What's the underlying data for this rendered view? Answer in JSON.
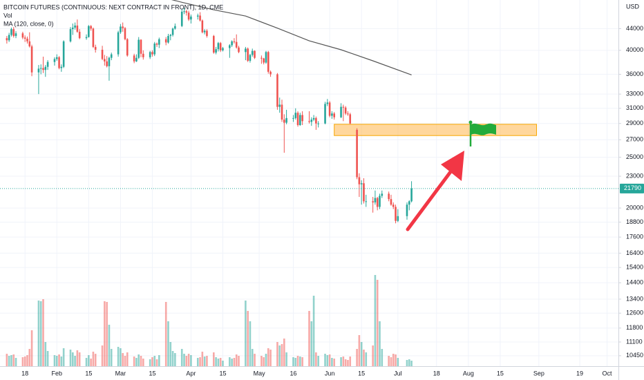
{
  "chart_data": {
    "type": "candlestick",
    "title": "BITCOIN FUTURES (CONTINUOUS: NEXT CONTRACT IN FRONT), 1D, CME",
    "y_axis_label": "USD",
    "log": true,
    "grid": true,
    "up_color": "#26a69a",
    "down_color": "#ef5350",
    "xlim": [
      "01-07",
      "10-06"
    ],
    "ylim": [
      9980,
      49900
    ],
    "yticks": [
      44000,
      40000,
      36000,
      33000,
      31000,
      29000,
      27000,
      25000,
      23000,
      20000,
      18800,
      17600,
      16400,
      15400,
      14400,
      13400,
      12600,
      11800,
      11100,
      10450
    ],
    "xticks": [
      {
        "value": "01-18",
        "label": "18"
      },
      {
        "value": "02-01",
        "label": "Feb"
      },
      {
        "value": "02-15",
        "label": "15"
      },
      {
        "value": "03-01",
        "label": "Mar"
      },
      {
        "value": "03-15",
        "label": "15"
      },
      {
        "value": "04-01",
        "label": "Apr"
      },
      {
        "value": "04-15",
        "label": "15"
      },
      {
        "value": "05-01",
        "label": "May"
      },
      {
        "value": "05-16",
        "label": "16"
      },
      {
        "value": "06-01",
        "label": "Jun"
      },
      {
        "value": "06-15",
        "label": "15"
      },
      {
        "value": "07-01",
        "label": "Jul"
      },
      {
        "value": "07-18",
        "label": "18"
      },
      {
        "value": "08-01",
        "label": "Aug"
      },
      {
        "value": "08-15",
        "label": "15"
      },
      {
        "value": "09-01",
        "label": "Sep"
      },
      {
        "value": "09-19",
        "label": "19"
      },
      {
        "value": "10-01",
        "label": "Oct"
      }
    ],
    "x": [
      "01-10",
      "01-11",
      "01-12",
      "01-13",
      "01-14",
      "01-17",
      "01-18",
      "01-19",
      "01-20",
      "01-21",
      "01-24",
      "01-25",
      "01-26",
      "01-27",
      "01-28",
      "01-31",
      "02-01",
      "02-02",
      "02-03",
      "02-04",
      "02-07",
      "02-08",
      "02-09",
      "02-10",
      "02-11",
      "02-14",
      "02-15",
      "02-16",
      "02-17",
      "02-18",
      "02-21",
      "02-22",
      "02-23",
      "02-24",
      "02-25",
      "02-28",
      "03-01",
      "03-02",
      "03-03",
      "03-04",
      "03-07",
      "03-08",
      "03-09",
      "03-10",
      "03-11",
      "03-14",
      "03-15",
      "03-16",
      "03-17",
      "03-18",
      "03-21",
      "03-22",
      "03-23",
      "03-24",
      "03-25",
      "03-28",
      "03-29",
      "03-30",
      "03-31",
      "04-01",
      "04-04",
      "04-05",
      "04-06",
      "04-07",
      "04-08",
      "04-11",
      "04-12",
      "04-13",
      "04-14",
      "04-15",
      "04-18",
      "04-19",
      "04-20",
      "04-21",
      "04-22",
      "04-25",
      "04-26",
      "04-27",
      "04-28",
      "04-29",
      "05-02",
      "05-03",
      "05-04",
      "05-05",
      "05-06",
      "05-09",
      "05-10",
      "05-11",
      "05-12",
      "05-13",
      "05-16",
      "05-17",
      "05-18",
      "05-19",
      "05-20",
      "05-23",
      "05-24",
      "05-25",
      "05-26",
      "05-27",
      "05-30",
      "05-31",
      "06-01",
      "06-02",
      "06-03",
      "06-06",
      "06-07",
      "06-08",
      "06-09",
      "06-10",
      "06-13",
      "06-14",
      "06-15",
      "06-16",
      "06-17",
      "06-20",
      "06-21",
      "06-22",
      "06-23",
      "06-24",
      "06-27",
      "06-28",
      "06-29",
      "06-30",
      "07-01",
      "07-05",
      "07-06",
      "07-07"
    ],
    "open": [
      42200,
      41800,
      42800,
      43900,
      42600,
      43100,
      42300,
      42100,
      41600,
      40700,
      36300,
      36900,
      37000,
      36700,
      37200,
      38000,
      38500,
      38800,
      37000,
      37200,
      41600,
      43900,
      44200,
      44600,
      43400,
      42200,
      42400,
      44500,
      44000,
      40600,
      40100,
      38500,
      38100,
      37300,
      38700,
      39300,
      43300,
      44400,
      44100,
      42000,
      39100,
      38100,
      38700,
      41900,
      39400,
      38800,
      39700,
      39300,
      41200,
      41000,
      42000,
      41400,
      42600,
      42800,
      44000,
      44500,
      47400,
      47500,
      47200,
      45800,
      46400,
      46600,
      45600,
      43300,
      43600,
      42600,
      39600,
      40200,
      41300,
      40000,
      40400,
      40900,
      41600,
      41500,
      40500,
      39700,
      40300,
      38200,
      39200,
      39900,
      38700,
      38600,
      37900,
      39700,
      36400,
      36000,
      31200,
      31500,
      29500,
      29100,
      29700,
      29700,
      30400,
      28800,
      30100,
      29300,
      29200,
      29500,
      29700,
      29000,
      29000,
      31600,
      31800,
      30000,
      30300,
      29800,
      31200,
      31100,
      30300,
      30200,
      28200,
      22900,
      22200,
      22300,
      20600,
      20600,
      20500,
      20900,
      20100,
      21100,
      21300,
      20800,
      20300,
      20100,
      18900,
      19300,
      20300,
      20600
    ],
    "high": [
      42600,
      43200,
      44200,
      44300,
      43500,
      43400,
      42700,
      42500,
      43300,
      41000,
      37500,
      37600,
      38900,
      37500,
      38300,
      38800,
      39300,
      39000,
      37600,
      41800,
      44300,
      45000,
      45200,
      45800,
      43900,
      42900,
      44700,
      44700,
      44200,
      41000,
      40800,
      39200,
      39000,
      38900,
      39600,
      43600,
      44900,
      45200,
      44300,
      42200,
      39400,
      39300,
      42400,
      42000,
      40000,
      39900,
      40000,
      41500,
      41400,
      42300,
      42400,
      43000,
      43000,
      44200,
      45000,
      47900,
      48200,
      47800,
      47600,
      46800,
      47000,
      47300,
      45800,
      43900,
      43900,
      42800,
      40600,
      41500,
      41500,
      40600,
      41100,
      41800,
      42200,
      42900,
      40800,
      40600,
      40500,
      39400,
      40300,
      40000,
      39100,
      38700,
      39900,
      39900,
      36600,
      36200,
      32500,
      32200,
      30200,
      30800,
      30100,
      31000,
      30600,
      30400,
      30600,
      30600,
      29800,
      30100,
      29900,
      29300,
      31900,
      32300,
      32000,
      30600,
      30500,
      31700,
      31500,
      31300,
      30600,
      30400,
      28400,
      23300,
      22600,
      22800,
      21200,
      21000,
      21600,
      21000,
      21300,
      21600,
      21500,
      21200,
      20500,
      20300,
      19900,
      20500,
      20700,
      22500
    ],
    "low": [
      41200,
      41500,
      42500,
      42300,
      42200,
      42000,
      41500,
      41200,
      40500,
      35700,
      33000,
      36000,
      36200,
      35600,
      36700,
      37400,
      38200,
      36800,
      36400,
      37000,
      41400,
      42800,
      43800,
      43200,
      42000,
      41900,
      42300,
      43600,
      40400,
      39600,
      38300,
      37400,
      37100,
      35000,
      38300,
      38900,
      43000,
      43400,
      41800,
      38900,
      37800,
      38000,
      38500,
      38800,
      38400,
      38500,
      38900,
      39000,
      40600,
      40400,
      40900,
      41200,
      41800,
      42500,
      43800,
      44300,
      46900,
      46600,
      45500,
      45000,
      45800,
      45400,
      43100,
      42900,
      42300,
      39400,
      39300,
      39800,
      39700,
      39800,
      38700,
      40600,
      41200,
      40300,
      39500,
      38300,
      38000,
      37900,
      38900,
      38500,
      37700,
      37600,
      37700,
      36100,
      35600,
      30800,
      30400,
      29200,
      25500,
      28900,
      29200,
      29500,
      28600,
      28700,
      28800,
      29000,
      28700,
      29300,
      28200,
      28500,
      28900,
      31300,
      29800,
      29600,
      29500,
      29700,
      29300,
      30100,
      30000,
      28900,
      22700,
      21000,
      20300,
      20400,
      20100,
      19600,
      20300,
      19800,
      19900,
      20900,
      20600,
      20200,
      19900,
      18700,
      18800,
      19000,
      19800,
      20500
    ],
    "close": [
      41800,
      42800,
      43900,
      42600,
      43100,
      42300,
      42100,
      41600,
      40700,
      36300,
      36900,
      37000,
      36700,
      37200,
      38000,
      38500,
      38800,
      37000,
      37200,
      41600,
      43900,
      44200,
      44600,
      43400,
      42200,
      42400,
      44500,
      44000,
      40600,
      40100,
      38500,
      38100,
      37300,
      38700,
      39300,
      43300,
      44400,
      44100,
      42000,
      39100,
      38100,
      38700,
      41900,
      39400,
      38800,
      39700,
      39300,
      41200,
      41000,
      42000,
      41400,
      42600,
      42800,
      44000,
      44500,
      47400,
      47500,
      47200,
      45800,
      46400,
      46600,
      45600,
      43300,
      43600,
      42600,
      39600,
      40200,
      41300,
      40000,
      40400,
      40900,
      41600,
      41500,
      40500,
      39700,
      40300,
      38200,
      39200,
      39900,
      38700,
      38600,
      37900,
      39700,
      36400,
      36000,
      31200,
      31500,
      29500,
      29100,
      29700,
      29700,
      30400,
      28800,
      30100,
      29300,
      29200,
      29500,
      29700,
      29000,
      29000,
      31600,
      31800,
      30000,
      30300,
      29800,
      31200,
      31100,
      30300,
      30200,
      29000,
      22900,
      22200,
      22300,
      20600,
      20600,
      20500,
      20900,
      20100,
      21100,
      21300,
      20800,
      20300,
      20100,
      18900,
      19300,
      20300,
      20600,
      21790
    ],
    "volume_name": "Vol",
    "vlim": [
      0,
      16000
    ],
    "volume": [
      1800,
      1500,
      1600,
      1700,
      1200,
      1300,
      1400,
      1600,
      2500,
      5200,
      9500,
      9400,
      9700,
      3500,
      2200,
      1600,
      1500,
      1700,
      1400,
      2600,
      2400,
      2000,
      1500,
      2300,
      2000,
      1200,
      1600,
      1100,
      2100,
      1800,
      3000,
      9400,
      9300,
      6000,
      2500,
      2800,
      2600,
      1900,
      1500,
      2000,
      1400,
      1200,
      1700,
      1500,
      1100,
      1000,
      1300,
      1500,
      1000,
      1600,
      9300,
      6500,
      3500,
      2200,
      1900,
      2500,
      1800,
      1500,
      1800,
      1600,
      1200,
      1300,
      2100,
      1400,
      1500,
      2000,
      1300,
      1100,
      1200,
      800,
      1300,
      1100,
      1200,
      1700,
      1500,
      9500,
      8000,
      6500,
      2500,
      1800,
      1500,
      1300,
      1800,
      2600,
      2400,
      3500,
      3000,
      3200,
      4000,
      2000,
      1300,
      1200,
      1500,
      1400,
      1300,
      8000,
      6500,
      10200,
      2000,
      1500,
      1800,
      1600,
      1700,
      1200,
      1100,
      1300,
      1400,
      1000,
      900,
      1400,
      2500,
      4500,
      3500,
      2400,
      2000,
      3000,
      13200,
      12500,
      6500,
      2500,
      1500,
      1300,
      1800,
      1700,
      1200,
      900,
      1000,
      800
    ],
    "ma": {
      "name": "MA (120, close, 0)",
      "color": "#555555",
      "x": [
        "03-21",
        "03-28",
        "04-11",
        "04-25",
        "05-09",
        "05-23",
        "06-06",
        "06-20",
        "07-07"
      ],
      "values": [
        50300,
        49400,
        47800,
        46500,
        44100,
        41700,
        40100,
        38200,
        35900
      ]
    },
    "last_price": 21790,
    "zone": {
      "color": "#ffb74d",
      "x": [
        "06-03",
        "08-31"
      ],
      "y": [
        27500,
        28900
      ]
    }
  }
}
